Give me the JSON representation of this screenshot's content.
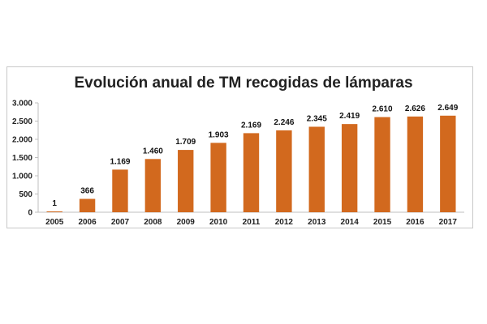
{
  "chart_data": {
    "type": "bar",
    "title": "Evolución anual de TM recogidas de lámparas",
    "xlabel": "",
    "ylabel": "",
    "categories": [
      "2005",
      "2006",
      "2007",
      "2008",
      "2009",
      "2010",
      "2011",
      "2012",
      "2013",
      "2014",
      "2015",
      "2016",
      "2017"
    ],
    "values": [
      1,
      366,
      1169,
      1460,
      1709,
      1903,
      2169,
      2246,
      2345,
      2419,
      2610,
      2626,
      2649
    ],
    "data_labels": [
      "1",
      "366",
      "1.169",
      "1.460",
      "1.709",
      "1.903",
      "2.169",
      "2.246",
      "2.345",
      "2.419",
      "2.610",
      "2.626",
      "2.649"
    ],
    "ylim": [
      0,
      3000
    ],
    "yticks": [
      0,
      500,
      1000,
      1500,
      2000,
      2500,
      3000
    ],
    "ytick_labels": [
      "0",
      "500",
      "1.000",
      "1.500",
      "2.000",
      "2.500",
      "3.000"
    ],
    "grid": false,
    "legend": "none",
    "bar_color": "#D2691E"
  }
}
